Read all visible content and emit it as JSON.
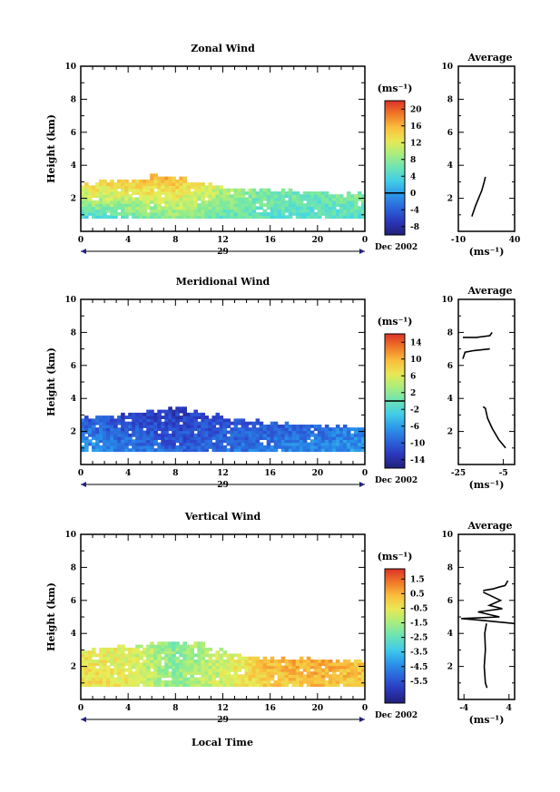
{
  "figure": {
    "local_time_label": "Local Time",
    "date_label": "Dec 2002",
    "day_label": "29"
  },
  "chart_data": [
    {
      "id": "zonal",
      "type": "heatmap",
      "title": "Zonal Wind",
      "ylabel": "Height (km)",
      "unit": "(ms⁻¹)",
      "xlim": [
        0,
        24
      ],
      "ylim": [
        0,
        10
      ],
      "xticks": [
        "0",
        "4",
        "8",
        "12",
        "16",
        "20",
        "0"
      ],
      "yticks": [
        "2",
        "4",
        "6",
        "8",
        "10"
      ],
      "colorbar": {
        "min": -10,
        "max": 22,
        "ticks": [
          "20",
          "16",
          "12",
          "8",
          "4",
          "0",
          "-4",
          "-8"
        ],
        "zero_line": 0
      },
      "top_height_km": [
        2.9,
        3.0,
        3.1,
        3.2,
        3.4,
        3.3,
        3.0,
        2.8,
        2.6,
        2.6,
        2.5,
        2.5,
        2.4,
        2.4,
        2.3,
        2.3
      ],
      "field": {
        "x": [
          0,
          4,
          8,
          12,
          16,
          20,
          24
        ],
        "upper_values": [
          14,
          15,
          16,
          10,
          7,
          6,
          8
        ],
        "lower_values": [
          4,
          6,
          8,
          6,
          5,
          5,
          5
        ]
      },
      "average": {
        "title": "Average",
        "xlim": [
          -10,
          40
        ],
        "xticks": [
          "-10",
          "40"
        ],
        "yticks": [
          "2",
          "4",
          "6",
          "8",
          "10"
        ],
        "xlabel": "(ms⁻¹)",
        "profile": [
          {
            "v": 2,
            "h": 0.9
          },
          {
            "v": 5,
            "h": 1.5
          },
          {
            "v": 8,
            "h": 2.0
          },
          {
            "v": 11,
            "h": 2.5
          },
          {
            "v": 13,
            "h": 3.0
          },
          {
            "v": 14,
            "h": 3.3
          }
        ]
      }
    },
    {
      "id": "meridional",
      "type": "heatmap",
      "title": "Meridional Wind",
      "ylabel": "Height (km)",
      "unit": "(ms⁻¹)",
      "xlim": [
        0,
        24
      ],
      "ylim": [
        0,
        10
      ],
      "xticks": [
        "0",
        "4",
        "8",
        "12",
        "16",
        "20",
        "0"
      ],
      "yticks": [
        "2",
        "4",
        "6",
        "8",
        "10"
      ],
      "colorbar": {
        "min": -16,
        "max": 16,
        "ticks": [
          "14",
          "10",
          "6",
          "2",
          "-2",
          "-6",
          "-10",
          "-14"
        ],
        "zero_line": 0
      },
      "top_height_km": [
        2.9,
        3.0,
        3.1,
        3.2,
        3.4,
        3.5,
        3.2,
        3.0,
        2.8,
        2.7,
        2.6,
        2.5,
        2.4,
        2.4,
        2.3,
        2.3
      ],
      "field": {
        "x": [
          0,
          4,
          8,
          12,
          16,
          20,
          24
        ],
        "upper_values": [
          -10,
          -12,
          -13,
          -11,
          -10,
          -9,
          -8
        ],
        "lower_values": [
          -6,
          -8,
          -10,
          -9,
          -8,
          -7,
          -6
        ]
      },
      "average": {
        "title": "Average",
        "xlim": [
          -25,
          0
        ],
        "xticks": [
          "-25",
          "-5"
        ],
        "yticks": [
          "2",
          "4",
          "6",
          "8",
          "10"
        ],
        "xlabel": "(ms⁻¹)",
        "segments": [
          [
            {
              "v": -23,
              "h": 7.7
            },
            {
              "v": -17,
              "h": 7.7
            },
            {
              "v": -11,
              "h": 7.8
            },
            {
              "v": -10,
              "h": 8.0
            }
          ],
          [
            {
              "v": -23,
              "h": 6.4
            },
            {
              "v": -22,
              "h": 6.8
            },
            {
              "v": -18,
              "h": 6.9
            },
            {
              "v": -11,
              "h": 7.0
            }
          ],
          [
            {
              "v": -14,
              "h": 3.5
            },
            {
              "v": -13,
              "h": 3.4
            },
            {
              "v": -12,
              "h": 2.8
            },
            {
              "v": -10,
              "h": 2.2
            },
            {
              "v": -7,
              "h": 1.5
            },
            {
              "v": -4,
              "h": 1.0
            }
          ]
        ]
      }
    },
    {
      "id": "vertical",
      "type": "heatmap",
      "title": "Vertical Wind",
      "ylabel": "Height (km)",
      "unit": "(ms⁻¹)",
      "xlim": [
        0,
        24
      ],
      "ylim": [
        0,
        10
      ],
      "xticks": [
        "0",
        "4",
        "8",
        "12",
        "16",
        "20",
        "0"
      ],
      "yticks": [
        "2",
        "4",
        "6",
        "8",
        "10"
      ],
      "colorbar": {
        "min": -7,
        "max": 2.2,
        "ticks": [
          "1.5",
          "0.5",
          "-0.5",
          "-1.5",
          "-2.5",
          "-3.5",
          "-4.5",
          "-5.5"
        ]
      },
      "top_height_km": [
        3.0,
        3.1,
        3.2,
        3.3,
        3.5,
        3.5,
        3.4,
        3.1,
        2.8,
        2.6,
        2.5,
        2.5,
        2.5,
        2.4,
        2.4,
        2.4
      ],
      "field": {
        "x": [
          0,
          4,
          8,
          12,
          16,
          20,
          24
        ],
        "upper_values": [
          -0.5,
          -0.8,
          -2.0,
          -1.0,
          0.4,
          0.7,
          0.2
        ],
        "lower_values": [
          -0.3,
          -0.6,
          -1.8,
          -0.9,
          0.1,
          0.3,
          0.0
        ]
      },
      "average": {
        "title": "Average",
        "xlim": [
          -5,
          5
        ],
        "xticks": [
          "-4",
          "4"
        ],
        "yticks": [
          "2",
          "4",
          "6",
          "8",
          "10"
        ],
        "xlabel": "(ms⁻¹)",
        "segments": [
          [
            {
              "v": 0,
              "h": 4.6
            },
            {
              "v": -0.3,
              "h": 4.0
            },
            {
              "v": -0.2,
              "h": 3.0
            },
            {
              "v": -0.4,
              "h": 2.0
            },
            {
              "v": -0.2,
              "h": 1.0
            },
            {
              "v": 0.1,
              "h": 0.7
            }
          ],
          [
            {
              "v": -0.6,
              "h": 6.6
            },
            {
              "v": 1.2,
              "h": 6.7
            },
            {
              "v": 2.2,
              "h": 6.8
            },
            {
              "v": 3.3,
              "h": 6.9
            },
            {
              "v": 3.8,
              "h": 7.2
            }
          ],
          [
            {
              "v": -0.6,
              "h": 6.5
            },
            {
              "v": 2.5,
              "h": 6.0
            },
            {
              "v": 0.5,
              "h": 5.7
            },
            {
              "v": 2.8,
              "h": 5.5
            },
            {
              "v": -1.5,
              "h": 5.3
            },
            {
              "v": 2.3,
              "h": 5.0
            },
            {
              "v": -4.5,
              "h": 4.9
            },
            {
              "v": -1.2,
              "h": 4.8
            },
            {
              "v": 5.0,
              "h": 4.6
            }
          ]
        ]
      }
    }
  ]
}
